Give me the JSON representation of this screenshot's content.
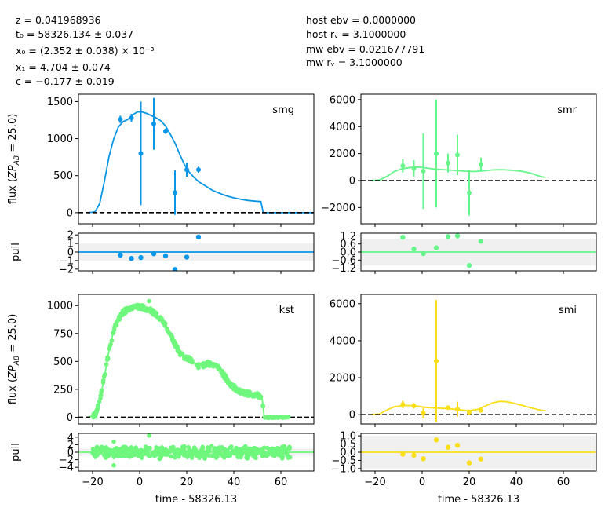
{
  "fit_params": {
    "z": "z = 0.041968936",
    "t0": "t₀ = 58326.134 ± 0.037",
    "x0": "x₀ = (2.352 ± 0.038) × 10⁻³",
    "x1": "x₁ = 4.704 ± 0.074",
    "c": "c = −0.177 ± 0.019"
  },
  "extinction": {
    "hostebv": "host ebv = 0.0000000",
    "hostrv": "host rᵥ = 3.1000000",
    "mwebv": "mw ebv = 0.021677791",
    "mwrv": "mw rᵥ = 3.1000000"
  },
  "labels": {
    "flux_ylabel": "flux (ZP_AB = 25.0)",
    "pull_ylabel": "pull",
    "xlabel": "time - 58326.13"
  },
  "chart_data": [
    {
      "type": "scatter",
      "band": "smg",
      "color": "#0a96e6",
      "xlim": [
        -26,
        74
      ],
      "ylim": [
        -150,
        1600
      ],
      "yticks": [
        0,
        500,
        1000,
        1500
      ],
      "xticks": [
        -20,
        0,
        20,
        40,
        60
      ],
      "points": [
        {
          "x": -8.2,
          "y": 1260,
          "err": 50
        },
        {
          "x": -3.5,
          "y": 1280,
          "err": 55
        },
        {
          "x": 0.5,
          "y": 800,
          "err": 700
        },
        {
          "x": 6.0,
          "y": 1200,
          "err": 350
        },
        {
          "x": 11.0,
          "y": 1100,
          "err": 35
        },
        {
          "x": 15.0,
          "y": 270,
          "err": 300
        },
        {
          "x": 20.0,
          "y": 580,
          "err": 95
        },
        {
          "x": 25.0,
          "y": 580,
          "err": 40
        }
      ],
      "model": [
        [
          -22,
          0
        ],
        [
          -19,
          10
        ],
        [
          -17,
          120
        ],
        [
          -15,
          420
        ],
        [
          -13,
          760
        ],
        [
          -11,
          1000
        ],
        [
          -9,
          1160
        ],
        [
          -7,
          1230
        ],
        [
          -5,
          1260
        ],
        [
          -3,
          1320
        ],
        [
          -1,
          1360
        ],
        [
          1,
          1360
        ],
        [
          3,
          1340
        ],
        [
          5,
          1310
        ],
        [
          7,
          1280
        ],
        [
          9,
          1240
        ],
        [
          11,
          1170
        ],
        [
          13,
          1060
        ],
        [
          15,
          940
        ],
        [
          17,
          790
        ],
        [
          19,
          650
        ],
        [
          21,
          550
        ],
        [
          23,
          480
        ],
        [
          25,
          420
        ],
        [
          28,
          360
        ],
        [
          31,
          300
        ],
        [
          34,
          260
        ],
        [
          37,
          225
        ],
        [
          40,
          200
        ],
        [
          43,
          180
        ],
        [
          46,
          165
        ],
        [
          49,
          155
        ],
        [
          51.5,
          150
        ],
        [
          52.5,
          0
        ],
        [
          74,
          0
        ]
      ],
      "pull": {
        "ylim": [
          -2.2,
          2.2
        ],
        "yticks": [
          -2,
          -1,
          0,
          1,
          2
        ],
        "band": 1,
        "points": [
          {
            "x": -8.2,
            "y": -0.35
          },
          {
            "x": -3.5,
            "y": -0.75
          },
          {
            "x": 0.5,
            "y": -0.65
          },
          {
            "x": 6.0,
            "y": -0.2
          },
          {
            "x": 11.0,
            "y": -0.45
          },
          {
            "x": 15.0,
            "y": -2.05
          },
          {
            "x": 20.0,
            "y": -0.6
          },
          {
            "x": 25.0,
            "y": 1.75
          }
        ]
      }
    },
    {
      "type": "scatter",
      "band": "smr",
      "color": "#66f58c",
      "xlim": [
        -26,
        74
      ],
      "ylim": [
        -3200,
        6400
      ],
      "yticks": [
        -2000,
        0,
        2000,
        4000,
        6000
      ],
      "xticks": [
        -20,
        0,
        20,
        40,
        60
      ],
      "points": [
        {
          "x": -8.2,
          "y": 1100,
          "err": 500
        },
        {
          "x": -3.5,
          "y": 900,
          "err": 600
        },
        {
          "x": 0.5,
          "y": 700,
          "err": 2800
        },
        {
          "x": 6.0,
          "y": 2000,
          "err": 4000
        },
        {
          "x": 11.0,
          "y": 1300,
          "err": 700
        },
        {
          "x": 15.0,
          "y": 1900,
          "err": 1500
        },
        {
          "x": 20.0,
          "y": -900,
          "err": 1700
        },
        {
          "x": 25.0,
          "y": 1200,
          "err": 500
        }
      ],
      "model": [
        [
          -22,
          0
        ],
        [
          -18,
          50
        ],
        [
          -15,
          300
        ],
        [
          -12,
          650
        ],
        [
          -9,
          850
        ],
        [
          -6,
          950
        ],
        [
          -3,
          1000
        ],
        [
          0,
          980
        ],
        [
          3,
          900
        ],
        [
          6,
          840
        ],
        [
          9,
          810
        ],
        [
          12,
          780
        ],
        [
          15,
          740
        ],
        [
          18,
          700
        ],
        [
          22,
          670
        ],
        [
          26,
          720
        ],
        [
          30,
          790
        ],
        [
          34,
          810
        ],
        [
          38,
          770
        ],
        [
          42,
          700
        ],
        [
          46,
          560
        ],
        [
          49,
          380
        ],
        [
          51.5,
          250
        ],
        [
          52.5,
          250
        ]
      ],
      "pull": {
        "ylim": [
          -1.4,
          1.4
        ],
        "yticks": [
          -1.2,
          -0.6,
          0,
          0.6,
          1.2
        ],
        "band": 1,
        "points": [
          {
            "x": -8.2,
            "y": 1.1
          },
          {
            "x": -3.5,
            "y": 0.22
          },
          {
            "x": 0.5,
            "y": -0.12
          },
          {
            "x": 6.0,
            "y": 0.32
          },
          {
            "x": 11.0,
            "y": 1.15
          },
          {
            "x": 15.0,
            "y": 1.2
          },
          {
            "x": 20.0,
            "y": -1.0
          },
          {
            "x": 25.0,
            "y": 0.8
          }
        ]
      }
    },
    {
      "type": "scatter",
      "band": "kst",
      "color": "#6ef77c",
      "xlim": [
        -26,
        74
      ],
      "ylim": [
        -60,
        1100
      ],
      "yticks": [
        0,
        250,
        500,
        750,
        1000
      ],
      "xticks": [
        -20,
        0,
        20,
        40,
        60
      ],
      "dense": true,
      "model": [
        [
          -22,
          0
        ],
        [
          -19,
          20
        ],
        [
          -17,
          130
        ],
        [
          -15,
          360
        ],
        [
          -13,
          600
        ],
        [
          -11,
          780
        ],
        [
          -9,
          880
        ],
        [
          -7,
          940
        ],
        [
          -5,
          970
        ],
        [
          -3,
          985
        ],
        [
          -1,
          990
        ],
        [
          1,
          985
        ],
        [
          3,
          970
        ],
        [
          5,
          950
        ],
        [
          7,
          920
        ],
        [
          9,
          880
        ],
        [
          11,
          820
        ],
        [
          13,
          740
        ],
        [
          15,
          650
        ],
        [
          17,
          580
        ],
        [
          19,
          540
        ],
        [
          21,
          520
        ],
        [
          23,
          490
        ],
        [
          25,
          460
        ],
        [
          27,
          465
        ],
        [
          29,
          480
        ],
        [
          31,
          475
        ],
        [
          33,
          445
        ],
        [
          35,
          400
        ],
        [
          37,
          340
        ],
        [
          39,
          285
        ],
        [
          41,
          255
        ],
        [
          43,
          230
        ],
        [
          45,
          215
        ],
        [
          47,
          205
        ],
        [
          49,
          200
        ],
        [
          51,
          190
        ],
        [
          52,
          180
        ],
        [
          52.8,
          20
        ],
        [
          53.5,
          0
        ],
        [
          64,
          0
        ]
      ],
      "pull": {
        "ylim": [
          -5,
          5
        ],
        "yticks": [
          -4,
          -2,
          0,
          2,
          4
        ],
        "band": 1,
        "dense": true
      }
    },
    {
      "type": "scatter",
      "band": "smi",
      "color": "#fade19",
      "xlim": [
        -26,
        74
      ],
      "ylim": [
        -500,
        6500
      ],
      "yticks": [
        0,
        2000,
        4000,
        6000
      ],
      "xticks": [
        -20,
        0,
        20,
        40,
        60
      ],
      "points": [
        {
          "x": -8.2,
          "y": 550,
          "err": 200
        },
        {
          "x": -3.5,
          "y": 480,
          "err": 150
        },
        {
          "x": 0.5,
          "y": 100,
          "err": 300
        },
        {
          "x": 6.0,
          "y": 2900,
          "err": 3300
        },
        {
          "x": 11.0,
          "y": 380,
          "err": 100
        },
        {
          "x": 15.0,
          "y": 300,
          "err": 400
        },
        {
          "x": 20.0,
          "y": 130,
          "err": 80
        },
        {
          "x": 25.0,
          "y": 230,
          "err": 80
        }
      ],
      "model": [
        [
          -22,
          0
        ],
        [
          -18,
          40
        ],
        [
          -15,
          250
        ],
        [
          -12,
          420
        ],
        [
          -9,
          480
        ],
        [
          -6,
          500
        ],
        [
          -3,
          480
        ],
        [
          0,
          420
        ],
        [
          3,
          380
        ],
        [
          6,
          360
        ],
        [
          9,
          340
        ],
        [
          12,
          320
        ],
        [
          15,
          280
        ],
        [
          18,
          240
        ],
        [
          21,
          230
        ],
        [
          24,
          300
        ],
        [
          27,
          480
        ],
        [
          30,
          640
        ],
        [
          33,
          720
        ],
        [
          36,
          700
        ],
        [
          39,
          620
        ],
        [
          42,
          520
        ],
        [
          46,
          380
        ],
        [
          49,
          280
        ],
        [
          51.5,
          220
        ],
        [
          52.5,
          220
        ]
      ],
      "pull": {
        "ylim": [
          -1.15,
          1.15
        ],
        "yticks": [
          -1.0,
          -0.5,
          0.0,
          0.5,
          1.0
        ],
        "band": 1,
        "points": [
          {
            "x": -8.2,
            "y": -0.12
          },
          {
            "x": -3.5,
            "y": -0.18
          },
          {
            "x": 0.5,
            "y": -0.4
          },
          {
            "x": 6.0,
            "y": 0.75
          },
          {
            "x": 11.0,
            "y": 0.3
          },
          {
            "x": 15.0,
            "y": 0.42
          },
          {
            "x": 20.0,
            "y": -0.65
          },
          {
            "x": 25.0,
            "y": -0.42
          }
        ]
      }
    }
  ]
}
